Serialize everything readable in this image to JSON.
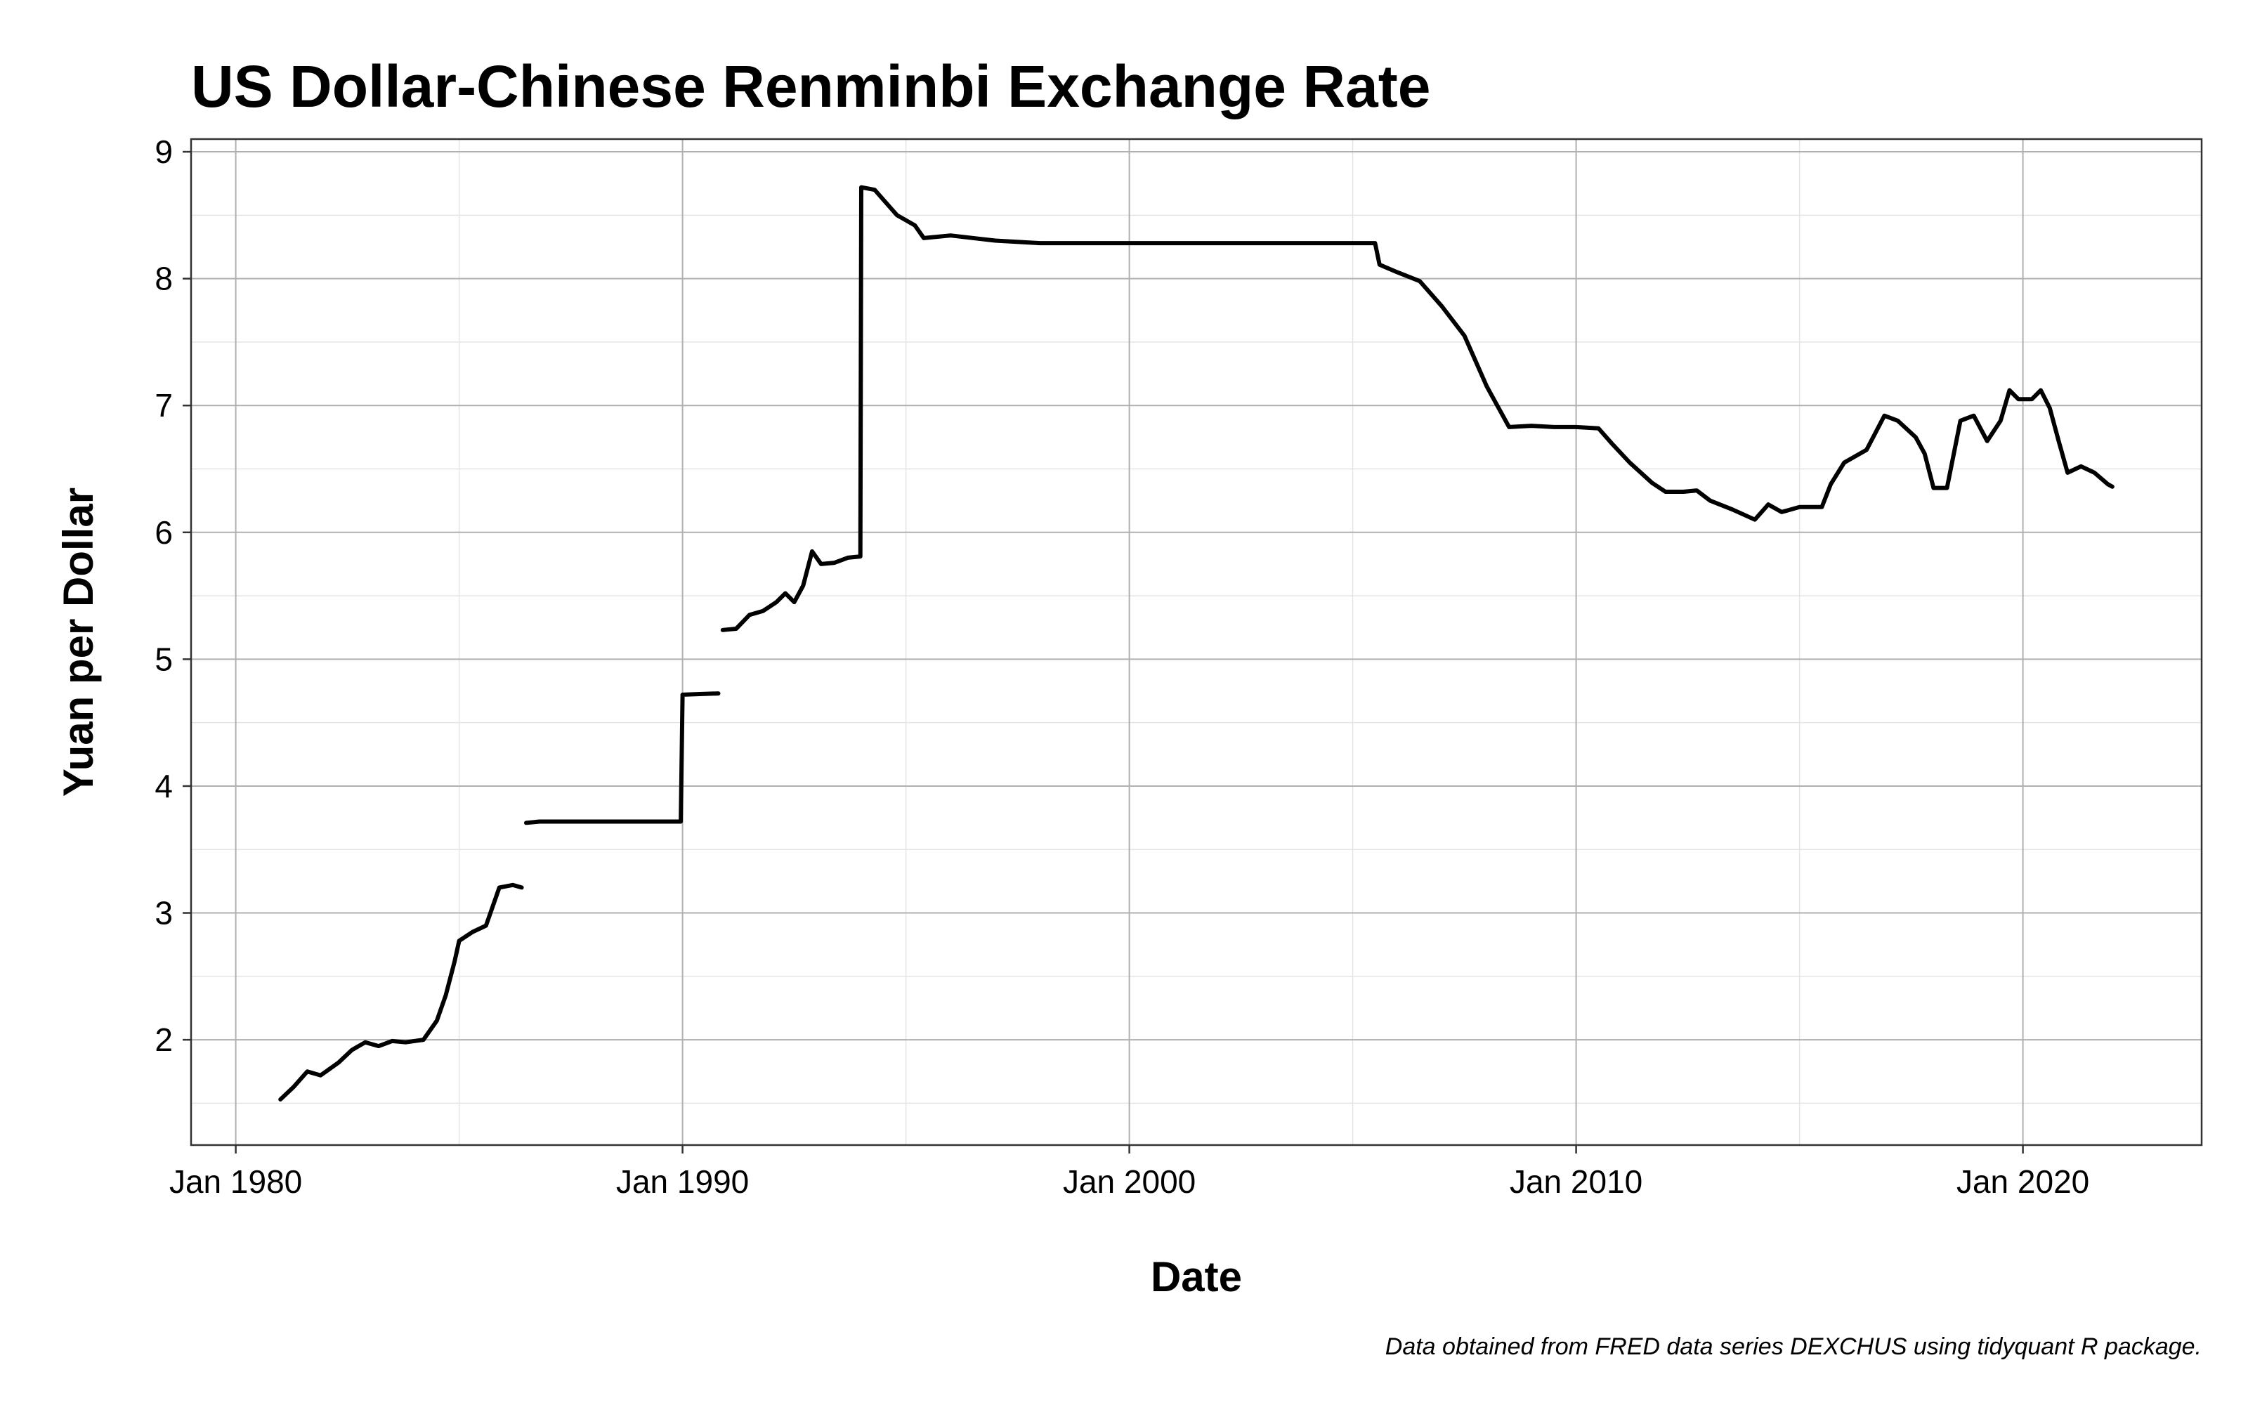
{
  "chart_data": {
    "type": "line",
    "title": "US Dollar-Chinese Renminbi Exchange Rate",
    "xlabel": "Date",
    "ylabel": "Yuan per Dollar",
    "caption": "Data obtained from FRED data series DEXCHUS using tidyquant R package.",
    "x_ticks": [
      "Jan 1980",
      "Jan 1990",
      "Jan 2000",
      "Jan 2010",
      "Jan 2020"
    ],
    "x_tick_years": [
      1980,
      1990,
      2000,
      2010,
      2020
    ],
    "y_ticks": [
      2,
      3,
      4,
      5,
      6,
      7,
      8,
      9
    ],
    "xlim": [
      1979.0,
      2024.0
    ],
    "ylim": [
      1.17,
      9.1
    ],
    "grid": true,
    "colors": {
      "line": "#000000",
      "grid_major": "#b0b0b0",
      "grid_minor": "#e4e4e4"
    },
    "series": [
      {
        "segments": [
          [
            [
              1981.0,
              1.53
            ],
            [
              1981.3,
              1.63
            ],
            [
              1981.6,
              1.75
            ],
            [
              1981.9,
              1.72
            ],
            [
              1982.3,
              1.82
            ],
            [
              1982.6,
              1.92
            ],
            [
              1982.9,
              1.98
            ],
            [
              1983.2,
              1.95
            ],
            [
              1983.5,
              1.99
            ],
            [
              1983.8,
              1.98
            ],
            [
              1984.2,
              2.0
            ],
            [
              1984.5,
              2.15
            ],
            [
              1984.7,
              2.35
            ],
            [
              1984.9,
              2.62
            ],
            [
              1985.0,
              2.78
            ],
            [
              1985.3,
              2.85
            ],
            [
              1985.6,
              2.9
            ],
            [
              1985.9,
              3.2
            ],
            [
              1986.2,
              3.22
            ],
            [
              1986.4,
              3.2
            ]
          ],
          [
            [
              1986.5,
              3.71
            ],
            [
              1986.8,
              3.72
            ],
            [
              1987.5,
              3.72
            ],
            [
              1988.5,
              3.72
            ],
            [
              1989.96,
              3.72
            ],
            [
              1990.0,
              4.72
            ],
            [
              1990.8,
              4.73
            ]
          ],
          [
            [
              1990.9,
              5.23
            ],
            [
              1991.2,
              5.24
            ],
            [
              1991.5,
              5.35
            ],
            [
              1991.8,
              5.38
            ],
            [
              1992.1,
              5.45
            ],
            [
              1992.3,
              5.52
            ],
            [
              1992.5,
              5.45
            ],
            [
              1992.7,
              5.58
            ],
            [
              1992.9,
              5.85
            ],
            [
              1993.1,
              5.75
            ],
            [
              1993.4,
              5.76
            ],
            [
              1993.7,
              5.8
            ],
            [
              1993.98,
              5.81
            ],
            [
              1994.0,
              8.72
            ],
            [
              1994.3,
              8.7
            ],
            [
              1994.5,
              8.62
            ],
            [
              1994.8,
              8.5
            ],
            [
              1995.2,
              8.42
            ],
            [
              1995.4,
              8.32
            ],
            [
              1996.0,
              8.34
            ],
            [
              1997.0,
              8.3
            ],
            [
              1998.0,
              8.28
            ],
            [
              1999.0,
              8.28
            ],
            [
              2000.0,
              8.28
            ],
            [
              2001.0,
              8.28
            ],
            [
              2002.0,
              8.28
            ],
            [
              2003.0,
              8.28
            ],
            [
              2004.0,
              8.28
            ],
            [
              2005.5,
              8.28
            ],
            [
              2005.6,
              8.11
            ],
            [
              2006.0,
              8.05
            ],
            [
              2006.5,
              7.98
            ],
            [
              2007.0,
              7.78
            ],
            [
              2007.5,
              7.55
            ],
            [
              2008.0,
              7.15
            ],
            [
              2008.5,
              6.83
            ],
            [
              2009.0,
              6.84
            ],
            [
              2009.5,
              6.83
            ],
            [
              2010.0,
              6.83
            ],
            [
              2010.5,
              6.82
            ],
            [
              2010.8,
              6.7
            ],
            [
              2011.2,
              6.55
            ],
            [
              2011.7,
              6.39
            ],
            [
              2012.0,
              6.32
            ],
            [
              2012.4,
              6.32
            ],
            [
              2012.7,
              6.33
            ],
            [
              2013.0,
              6.25
            ],
            [
              2013.5,
              6.18
            ],
            [
              2014.0,
              6.1
            ],
            [
              2014.3,
              6.22
            ],
            [
              2014.6,
              6.16
            ],
            [
              2015.0,
              6.2
            ],
            [
              2015.5,
              6.2
            ],
            [
              2015.7,
              6.38
            ],
            [
              2016.0,
              6.55
            ],
            [
              2016.5,
              6.65
            ],
            [
              2016.9,
              6.92
            ],
            [
              2017.2,
              6.88
            ],
            [
              2017.6,
              6.75
            ],
            [
              2017.8,
              6.62
            ],
            [
              2018.0,
              6.35
            ],
            [
              2018.3,
              6.35
            ],
            [
              2018.6,
              6.88
            ],
            [
              2018.9,
              6.92
            ],
            [
              2019.2,
              6.72
            ],
            [
              2019.5,
              6.88
            ],
            [
              2019.7,
              7.12
            ],
            [
              2019.9,
              7.05
            ],
            [
              2020.2,
              7.05
            ],
            [
              2020.4,
              7.12
            ],
            [
              2020.6,
              6.98
            ],
            [
              2020.8,
              6.72
            ],
            [
              2021.0,
              6.47
            ],
            [
              2021.3,
              6.52
            ],
            [
              2021.6,
              6.47
            ],
            [
              2021.9,
              6.38
            ],
            [
              2022.0,
              6.36
            ]
          ]
        ]
      }
    ]
  }
}
